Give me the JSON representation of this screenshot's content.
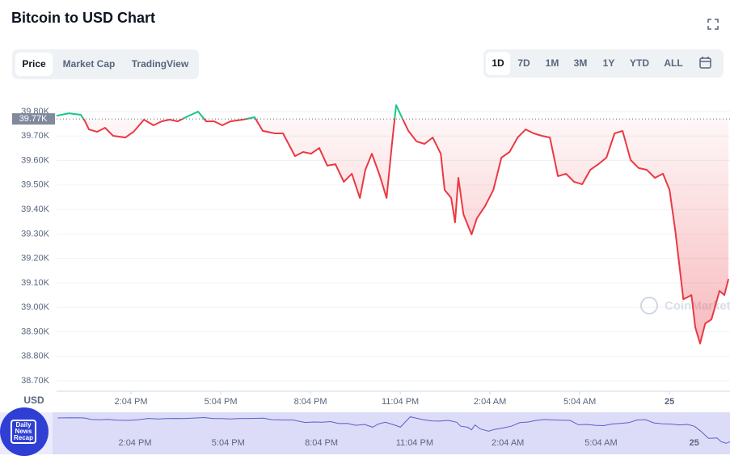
{
  "chart_data": {
    "type": "line",
    "title": "Bitcoin to USD Chart",
    "tabs": [
      "Price",
      "Market Cap",
      "TradingView"
    ],
    "ranges": [
      "1D",
      "7D",
      "1M",
      "3M",
      "1Y",
      "YTD",
      "ALL"
    ],
    "y_axis_label": "USD",
    "watermark": "CoinMarketCap",
    "badge": "Daily News Recap",
    "reference": {
      "value": 39770,
      "label": "39.77K"
    },
    "up_color": "#16c784",
    "down_color": "#ea3943",
    "x": [
      11.58,
      11.99,
      12.39,
      12.53,
      12.66,
      12.93,
      13.2,
      13.47,
      13.88,
      14.15,
      14.5,
      14.82,
      15.09,
      15.36,
      15.63,
      15.9,
      16.31,
      16.58,
      16.85,
      17.12,
      17.39,
      17.8,
      18.2,
      18.47,
      18.88,
      19.15,
      19.55,
      19.82,
      20.09,
      20.36,
      20.63,
      20.9,
      21.18,
      21.45,
      21.72,
      21.9,
      22.12,
      22.39,
      22.61,
      22.8,
      22.93,
      23.12,
      23.34,
      23.61,
      23.88,
      24.15,
      24.42,
      24.55,
      24.77,
      24.9,
      25.01,
      25.18,
      25.45,
      25.63,
      25.9,
      26.18,
      26.45,
      26.72,
      26.99,
      27.26,
      27.53,
      27.8,
      28.07,
      28.34,
      28.61,
      28.88,
      29.15,
      29.42,
      29.69,
      29.96,
      30.23,
      30.5,
      30.77,
      31.04,
      31.31,
      31.58,
      31.85,
      32.07,
      32.26,
      32.53,
      32.8,
      32.93,
      33.09,
      33.26,
      33.47,
      33.74,
      33.9,
      34.04
    ],
    "values": [
      39783,
      39793,
      39787,
      39760,
      39727,
      39717,
      39734,
      39701,
      39694,
      39717,
      39767,
      39744,
      39760,
      39767,
      39760,
      39777,
      39800,
      39760,
      39760,
      39744,
      39760,
      39767,
      39777,
      39721,
      39711,
      39711,
      39618,
      39635,
      39628,
      39651,
      39579,
      39585,
      39513,
      39546,
      39447,
      39562,
      39628,
      39536,
      39447,
      39678,
      39826,
      39777,
      39721,
      39678,
      39668,
      39694,
      39628,
      39480,
      39447,
      39347,
      39529,
      39380,
      39298,
      39364,
      39413,
      39480,
      39612,
      39635,
      39694,
      39727,
      39711,
      39701,
      39694,
      39536,
      39546,
      39513,
      39503,
      39562,
      39585,
      39612,
      39711,
      39721,
      39602,
      39569,
      39562,
      39529,
      39546,
      39480,
      39314,
      39033,
      39050,
      38918,
      38852,
      38934,
      38951,
      39067,
      39050,
      39116
    ],
    "xlim": [
      11.58,
      34.09
    ],
    "xticks": [
      {
        "value": 14.067,
        "label": "2:04 PM"
      },
      {
        "value": 17.067,
        "label": "5:04 PM"
      },
      {
        "value": 20.067,
        "label": "8:04 PM"
      },
      {
        "value": 23.067,
        "label": "11:04 PM"
      },
      {
        "value": 26.067,
        "label": "2:04 AM"
      },
      {
        "value": 29.067,
        "label": "5:04 AM"
      },
      {
        "value": 32.067,
        "label": "25"
      }
    ],
    "ylim": [
      38657,
      39843
    ],
    "yticks": [
      {
        "value": 38700,
        "label": "38.70K"
      },
      {
        "value": 38800,
        "label": "38.80K"
      },
      {
        "value": 38900,
        "label": "38.90K"
      },
      {
        "value": 39000,
        "label": "39.00K"
      },
      {
        "value": 39100,
        "label": "39.10K"
      },
      {
        "value": 39200,
        "label": "39.20K"
      },
      {
        "value": 39300,
        "label": "39.30K"
      },
      {
        "value": 39400,
        "label": "39.40K"
      },
      {
        "value": 39500,
        "label": "39.50K"
      },
      {
        "value": 39600,
        "label": "39.60K"
      },
      {
        "value": 39700,
        "label": "39.70K"
      },
      {
        "value": 39800,
        "label": "39.80K"
      }
    ],
    "grid": true
  }
}
